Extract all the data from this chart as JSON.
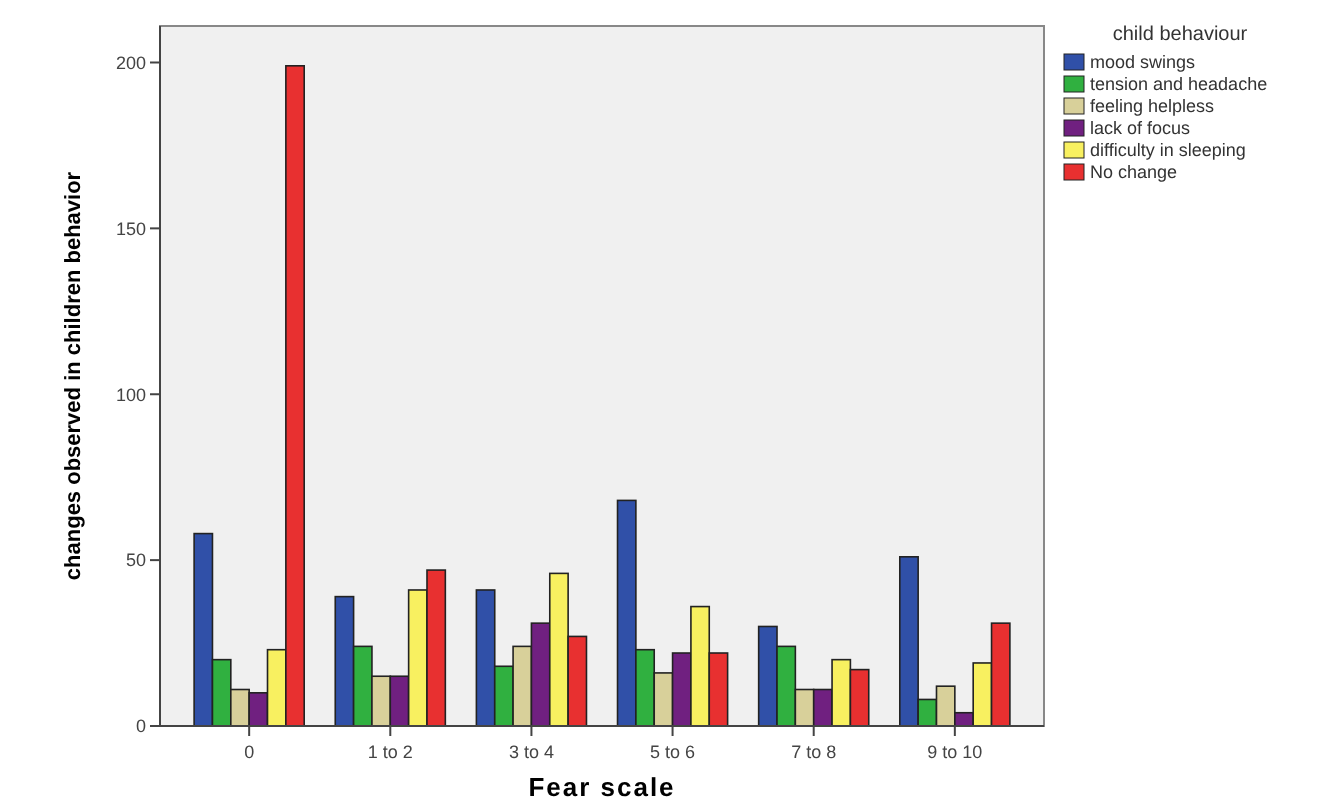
{
  "chart_data": {
    "type": "bar",
    "xlabel": "Fear scale",
    "ylabel": "changes observed in children behavior",
    "legend_title": "child behaviour",
    "legend": "right",
    "categories": [
      "0",
      "1 to 2",
      "3 to 4",
      "5 to 6",
      "7 to 8",
      "9 to 10"
    ],
    "ylim": [
      0,
      211
    ],
    "yticks": [
      0,
      50,
      100,
      150,
      200
    ],
    "grid": false,
    "series": [
      {
        "name": "mood swings",
        "color": "#3050a8",
        "values": [
          58,
          39,
          41,
          68,
          30,
          51
        ]
      },
      {
        "name": "tension and headache",
        "color": "#30b040",
        "values": [
          20,
          24,
          18,
          23,
          24,
          8
        ]
      },
      {
        "name": "feeling helpless",
        "color": "#d8d09a",
        "values": [
          11,
          15,
          24,
          16,
          11,
          12
        ]
      },
      {
        "name": "lack of focus",
        "color": "#702080",
        "values": [
          10,
          15,
          31,
          22,
          11,
          4
        ]
      },
      {
        "name": "difficulty in sleeping",
        "color": "#f8f060",
        "values": [
          23,
          41,
          46,
          36,
          20,
          19
        ]
      },
      {
        "name": "No change",
        "color": "#e83030",
        "values": [
          199,
          47,
          27,
          22,
          17,
          31
        ]
      }
    ]
  }
}
